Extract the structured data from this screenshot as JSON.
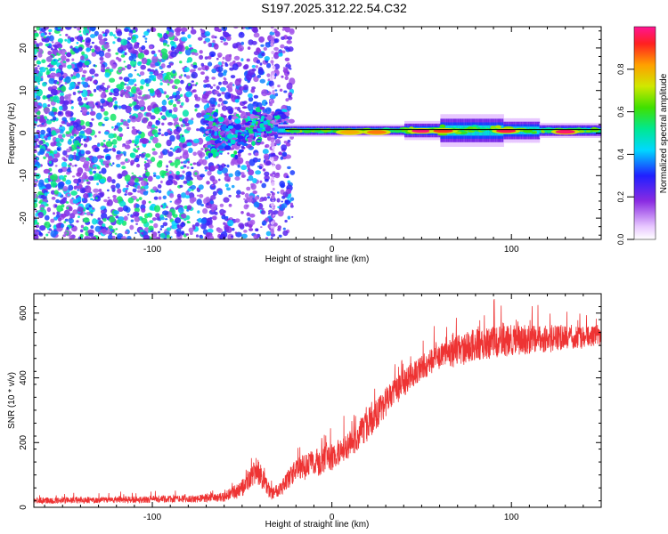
{
  "title": "S197.2025.312.22.54.C32",
  "chart_data": [
    {
      "type": "heatmap",
      "name": "spectrogram",
      "xlabel": "Height of straight line (km)",
      "ylabel": "Frequency (Hz)",
      "xlim": [
        -166,
        150
      ],
      "ylim": [
        -25,
        25
      ],
      "xticks": [
        -100,
        0,
        100
      ],
      "yticks": [
        -20,
        -10,
        0,
        10,
        20
      ],
      "colorbar": {
        "label": "Normalized spectral amplitude",
        "ticks": [
          0.0,
          0.2,
          0.4,
          0.6,
          0.8
        ],
        "range": [
          0,
          1
        ]
      },
      "ridge_line_hz": 0.8,
      "scatter_region_km": [
        -166,
        -30
      ],
      "coherent_region_km": [
        -60,
        150
      ],
      "hotspots": [
        {
          "x": 50,
          "y": 0.5,
          "amp": 0.98
        },
        {
          "x": 62,
          "y": 0.5,
          "amp": 0.9
        },
        {
          "x": 97,
          "y": 0.5,
          "amp": 0.95
        },
        {
          "x": 130,
          "y": 0.3,
          "amp": 0.97
        },
        {
          "x": 25,
          "y": 0.2,
          "amp": 0.85
        },
        {
          "x": 10,
          "y": 0.2,
          "amp": 0.8
        }
      ]
    },
    {
      "type": "line",
      "name": "snr",
      "xlabel": "Height of straight line (km)",
      "ylabel": "SNR (10 * v/v)",
      "xlim": [
        -166,
        150
      ],
      "ylim": [
        0,
        660
      ],
      "xticks": [
        -100,
        0,
        100
      ],
      "yticks": [
        0,
        200,
        400,
        600
      ],
      "series": [
        {
          "name": "SNR",
          "color": "#ee3333",
          "x": [
            -166,
            -120,
            -80,
            -60,
            -50,
            -42,
            -38,
            -34,
            -28,
            -20,
            -10,
            0,
            10,
            20,
            30,
            40,
            50,
            60,
            70,
            80,
            90,
            100,
            110,
            120,
            130,
            140,
            150
          ],
          "base": [
            20,
            22,
            25,
            30,
            55,
            110,
            80,
            40,
            60,
            110,
            130,
            150,
            190,
            250,
            320,
            380,
            430,
            460,
            480,
            495,
            505,
            510,
            515,
            515,
            520,
            520,
            525
          ],
          "noise": [
            14,
            15,
            17,
            20,
            40,
            60,
            45,
            28,
            35,
            55,
            60,
            60,
            60,
            70,
            65,
            60,
            55,
            60,
            70,
            75,
            70,
            70,
            65,
            60,
            55,
            50,
            45
          ]
        }
      ]
    }
  ]
}
